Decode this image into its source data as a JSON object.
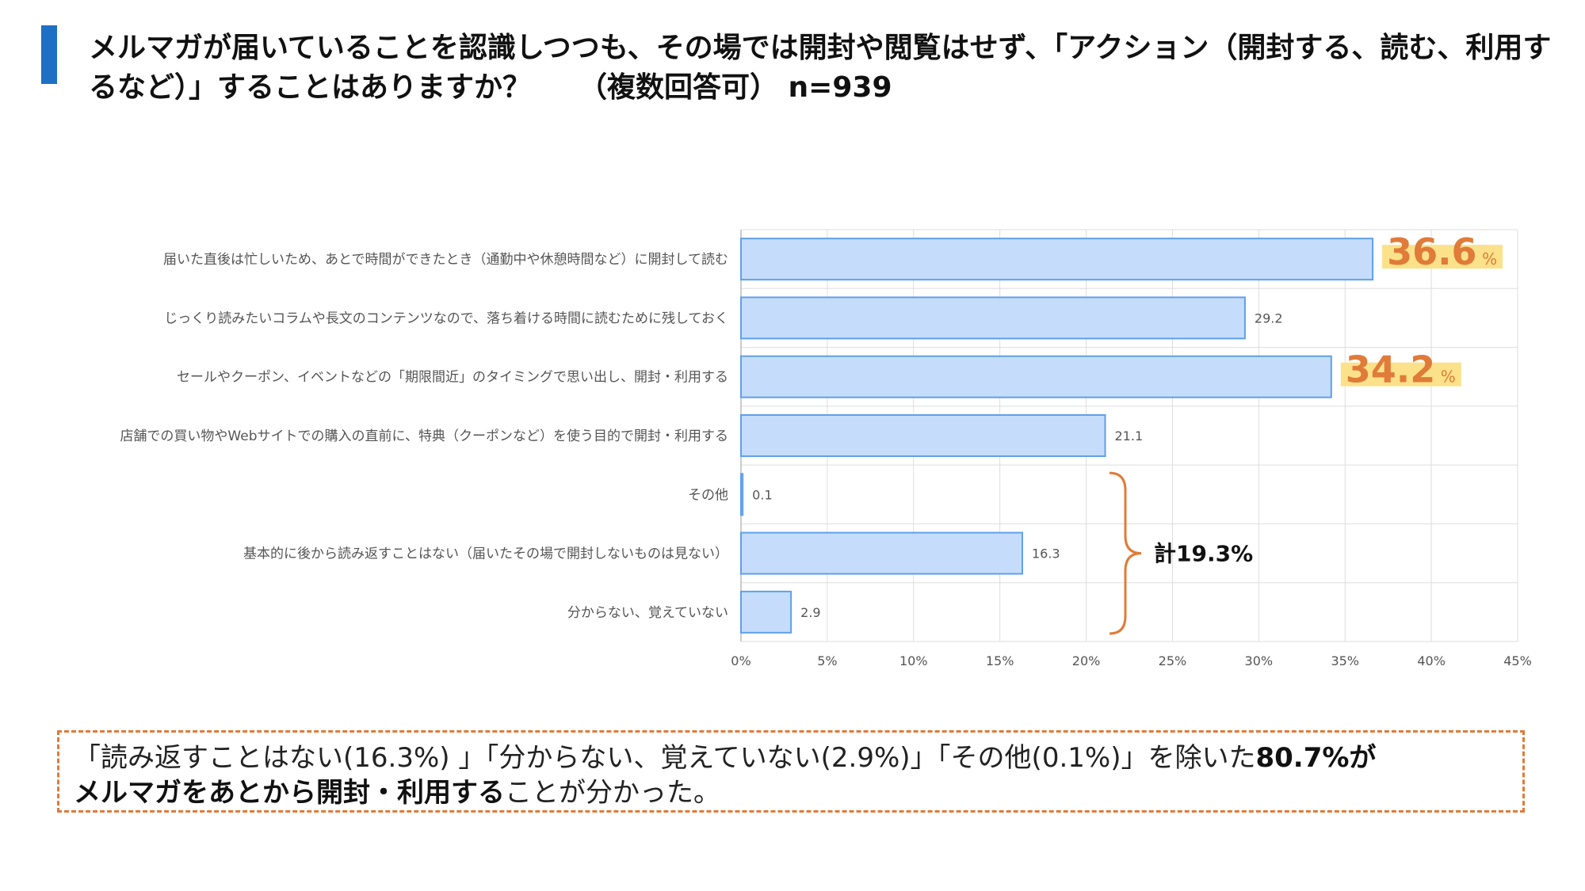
{
  "header": {
    "question": "メルマガが届いていることを認識しつつも、その場では開封や閲覧はせず、「アクション（開封する、読む、利用するなど）」することはありますか？",
    "qualifier": "（複数回答可） n=939"
  },
  "chart_data": {
    "type": "bar",
    "orientation": "horizontal",
    "categories": [
      "届いた直後は忙しいため、あとで時間ができたとき（通勤中や休憩時間など）に開封して読む",
      "じっくり読みたいコラムや長文のコンテンツなので、落ち着ける時間に読むために残しておく",
      "セールやクーポン、イベントなどの「期限間近」のタイミングで思い出し、開封・利用する",
      "店舗での買い物やWebサイトでの購入の直前に、特典（クーポンなど）を使う目的で開封・利用する",
      "その他",
      "基本的に後から読み返すことはない（届いたその場で開封しないものは見ない）",
      "分からない、覚えていない"
    ],
    "values": [
      36.6,
      29.2,
      34.2,
      21.1,
      0.1,
      16.3,
      2.9
    ],
    "data_labels": [
      "36.6",
      "29.2",
      "34.2",
      "21.1",
      "0.1",
      "16.3",
      "2.9"
    ],
    "highlighted": [
      0,
      2
    ],
    "highlight_unit": "%",
    "xlim": [
      0,
      45
    ],
    "x_ticks": [
      "0%",
      "5%",
      "10%",
      "15%",
      "20%",
      "25%",
      "30%",
      "35%",
      "40%",
      "45%"
    ],
    "grid": true,
    "bracket": {
      "from_category": 4,
      "to_category": 6,
      "label": "計19.3%"
    },
    "colors": {
      "bar_fill": "#c5ddfa",
      "bar_stroke": "#5fa0ea",
      "highlight_text": "#e07b39",
      "highlight_bg": "#fbe18a",
      "bracket": "#e07b39",
      "grid": "#dddddd"
    }
  },
  "summary": {
    "part1": "「読み返すことはない(16.3%) 」「分からない、覚えていない(2.9%)」「その他(0.1%)」を除いた",
    "bold1": "80.7%が",
    "bold2": "メルマガをあとから開封・利用する",
    "part2": "ことが分かった。"
  }
}
